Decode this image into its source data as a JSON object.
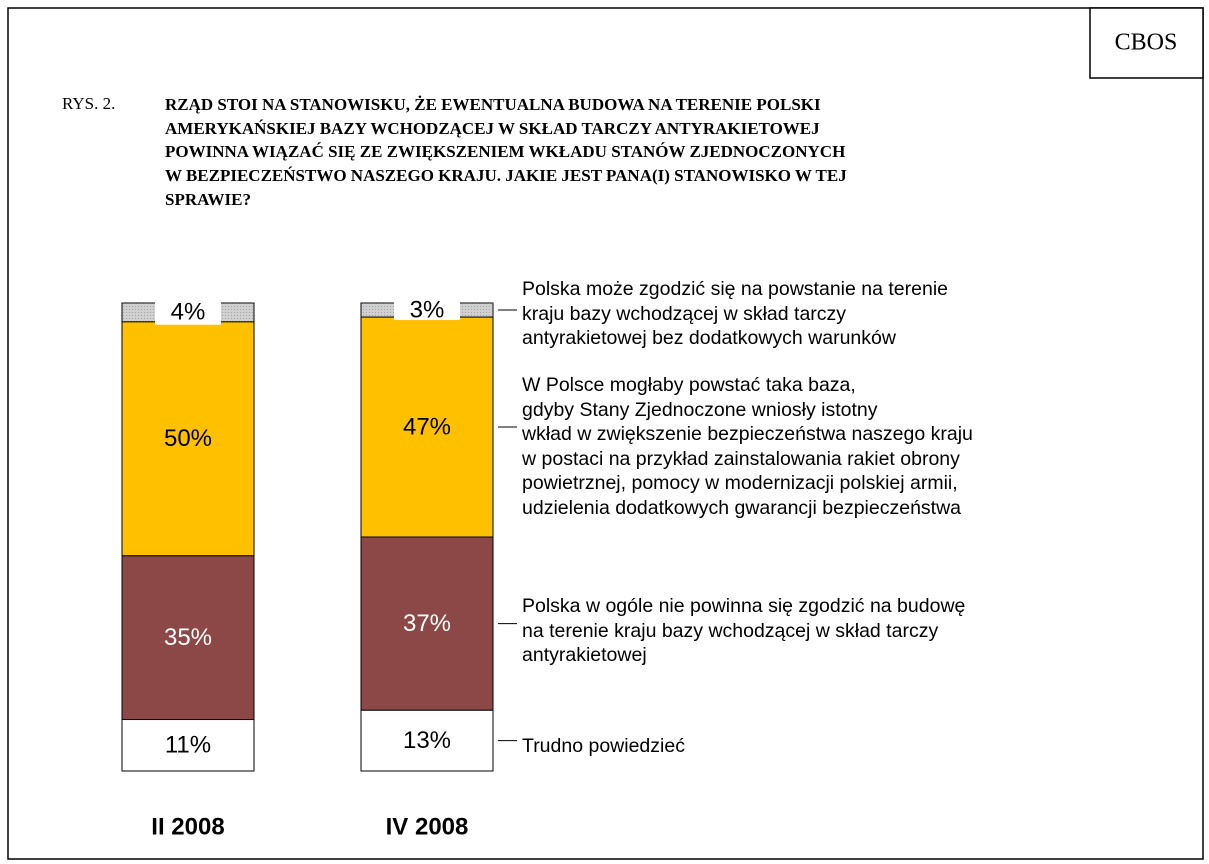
{
  "badge": "CBOS",
  "chart_data": {
    "type": "stacked_bar",
    "figure_label": "RYS. 2.",
    "title": "RZĄD STOI NA STANOWISKU, ŻE EWENTUALNA BUDOWA NA TERENIE POLSKI\nAMERYKAŃSKIEJ BAZY WCHODZĄCEJ W SKŁAD TARCZY ANTYRAKIETOWEJ\nPOWINNA WIĄZAĆ SIĘ ZE ZWIĘKSZENIEM WKŁADU STANÓW ZJEDNOCZONYCH\nW BEZPIECZEŃSTWO NASZEGO KRAJU. JAKIE JEST PANA(I) STANOWISKO W TEJ\nSPRAWIE?",
    "categories": [
      "II 2008",
      "IV 2008"
    ],
    "series": [
      {
        "name": "Polska może zgodzić się na powstanie na terenie\nkraju bazy wchodzącej w skład tarczy\nantyrakietowej bez dodatkowych warunków",
        "color": "#d0d0d0",
        "values": [
          4,
          3
        ],
        "value_labels": [
          "4%",
          "3%"
        ]
      },
      {
        "name": "W Polsce mogłaby powstać taka baza,\ngdyby Stany Zjednoczone wniosły istotny\nwkład w zwiększenie bezpieczeństwa naszego kraju\nw postaci na przykład zainstalowania rakiet obrony\npowietrznej, pomocy w modernizacji polskiej armii,\nudzielenia dodatkowych gwarancji bezpieczeństwa",
        "color": "#ffc000",
        "values": [
          50,
          47
        ],
        "value_labels": [
          "50%",
          "47%"
        ]
      },
      {
        "name": "Polska w ogóle nie powinna się zgodzić na budowę\nna terenie kraju bazy wchodzącej w skład tarczy\nantyrakietowej",
        "color": "#8b4846",
        "values": [
          35,
          37
        ],
        "value_labels": [
          "35%",
          "37%"
        ]
      },
      {
        "name": "Trudno powiedzieć",
        "color": "#ffffff",
        "values": [
          11,
          13
        ],
        "value_labels": [
          "11%",
          "13%"
        ]
      }
    ]
  }
}
